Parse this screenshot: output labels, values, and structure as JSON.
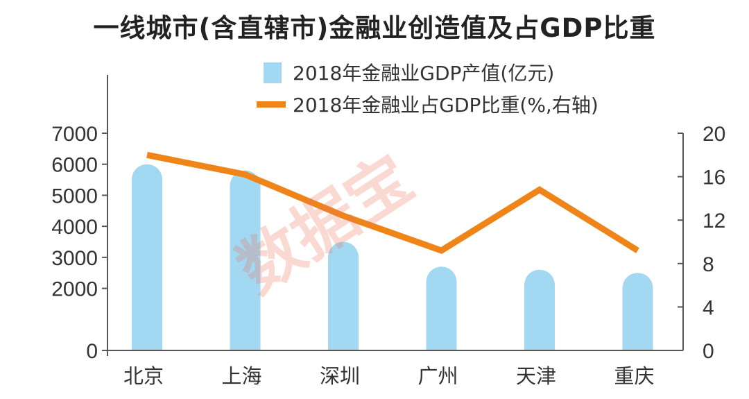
{
  "chart_data": {
    "type": "bar+line",
    "title": "一线城市(含直辖市)金融业创造值及占GDP比重",
    "categories": [
      "北京",
      "上海",
      "深圳",
      "广州",
      "天津",
      "重庆"
    ],
    "series": [
      {
        "name": "2018年金融业GDP产值(亿元)",
        "type": "bar",
        "axis": "left",
        "values": [
          6000,
          5800,
          3500,
          2700,
          2600,
          2500
        ]
      },
      {
        "name": "2018年金融业占GDP比重(%,右轴)",
        "type": "line",
        "axis": "right",
        "values": [
          18,
          16.2,
          12.4,
          9.2,
          14.8,
          9.2
        ]
      }
    ],
    "left_axis": {
      "ylim": [
        0,
        7000
      ],
      "ticks": [
        "0",
        "2000",
        "3000",
        "4000",
        "5000",
        "6000",
        "7000"
      ],
      "tick_values": [
        0,
        2000,
        3000,
        4000,
        5000,
        6000,
        7000
      ]
    },
    "right_axis": {
      "ylim": [
        0,
        20
      ],
      "ticks": [
        "0",
        "4",
        "8",
        "12",
        "16",
        "20"
      ],
      "tick_values": [
        0,
        4,
        8,
        12,
        16,
        20
      ]
    },
    "legend_position": "top-center"
  },
  "colors": {
    "bar": "#a3d8f2",
    "line": "#ef8418",
    "axis": "#555555",
    "text": "#333333"
  },
  "watermark": "数据宝"
}
